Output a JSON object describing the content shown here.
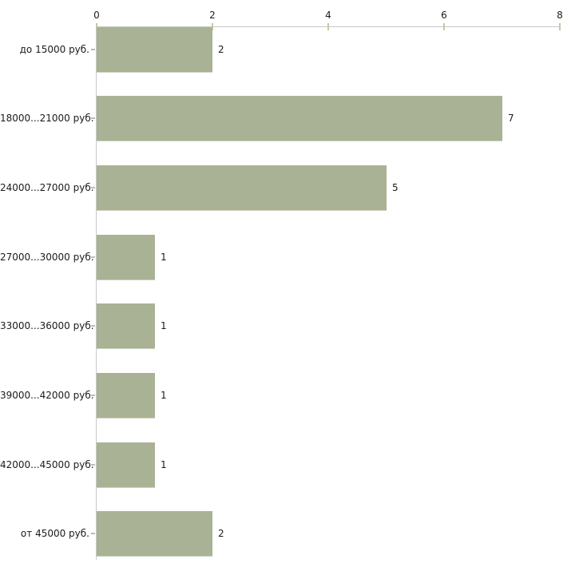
{
  "chart_data": {
    "type": "bar",
    "orientation": "horizontal",
    "title": "",
    "xlabel": "",
    "ylabel": "",
    "categories": [
      "до 15000 руб.",
      "18000...21000 руб.",
      "24000...27000 руб.",
      "27000...30000 руб.",
      "33000...36000 руб.",
      "39000...42000 руб.",
      "42000...45000 руб.",
      "от 45000 руб."
    ],
    "values": [
      2,
      7,
      5,
      1,
      1,
      1,
      1,
      2
    ],
    "value_labels": [
      "2",
      "7",
      "5",
      "1",
      "1",
      "1",
      "1",
      "2"
    ],
    "xlim": [
      0,
      8
    ],
    "x_ticks": [
      0,
      2,
      4,
      6,
      8
    ],
    "x_tick_labels": [
      "0",
      "2",
      "4",
      "6",
      "8"
    ],
    "axis_position": "top",
    "grid": false,
    "legend": null,
    "colors": {
      "bar_fill": "#a9b294",
      "bar_edge": "#cbd0bf",
      "axis_line": "#c8c8c8",
      "x_tick_mark": "#c5c8aa",
      "category_tick_mark": "#bcbcac",
      "text": "#1b1b1b",
      "background": "#ffffff"
    }
  }
}
